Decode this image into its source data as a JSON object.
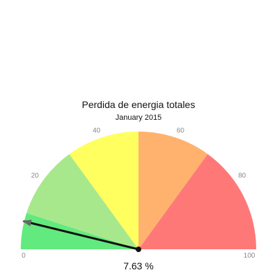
{
  "chart_data": {
    "type": "gauge",
    "title": "Perdida de energia totales",
    "subtitle": "January 2015",
    "min": 0,
    "max": 100,
    "value": 7.63,
    "value_label": "7.63 %",
    "tick_labels": [
      "0",
      "20",
      "40",
      "60",
      "80",
      "100"
    ],
    "ticks": [
      0,
      20,
      40,
      60,
      80,
      100
    ],
    "bands": [
      {
        "from": 0,
        "to": 10,
        "color": "#63ea7e"
      },
      {
        "from": 10,
        "to": 30,
        "color": "#a8e88c"
      },
      {
        "from": 30,
        "to": 50,
        "color": "#ffff60"
      },
      {
        "from": 50,
        "to": 70,
        "color": "#ffb26e"
      },
      {
        "from": 70,
        "to": 100,
        "color": "#ff7878"
      }
    ],
    "needle_color": "#111111",
    "grid": false
  }
}
